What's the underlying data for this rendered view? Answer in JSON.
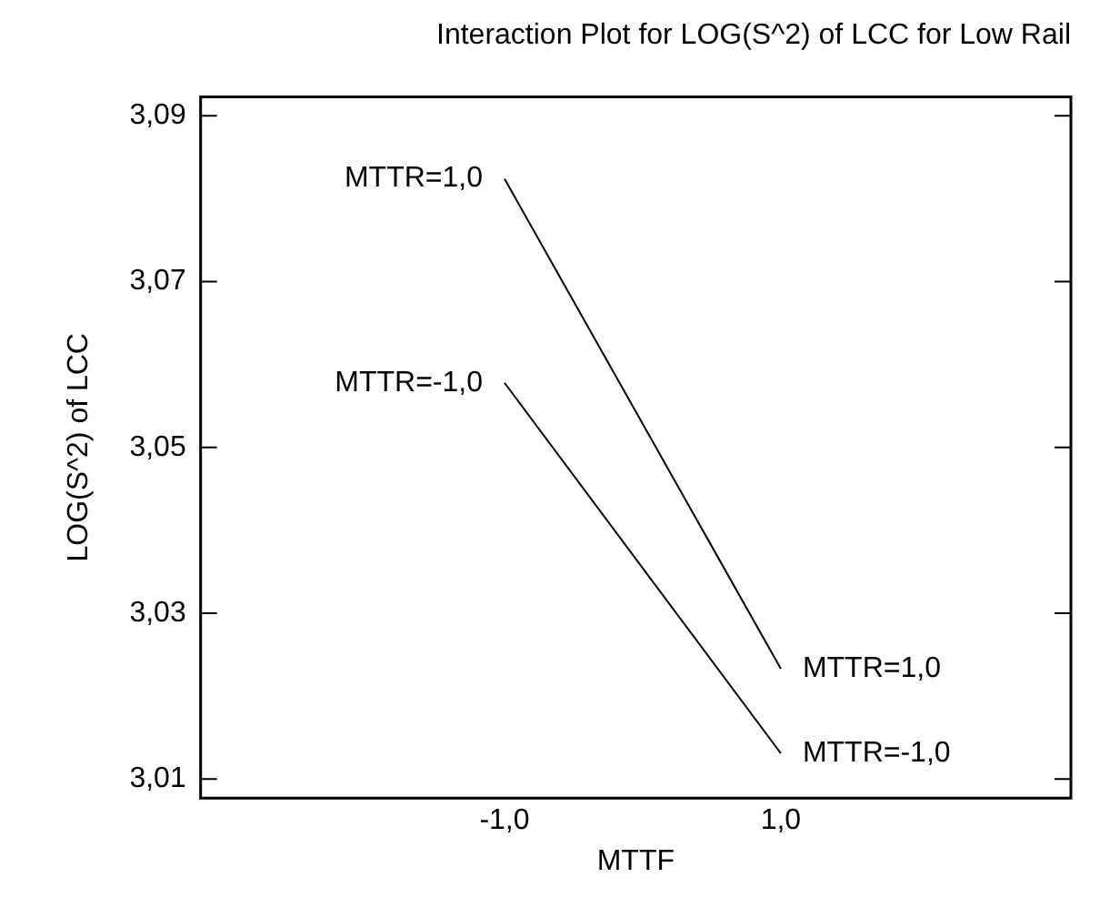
{
  "chart_data": {
    "type": "line",
    "title": "Interaction Plot for LOG(S^2) of LCC for Low Rail",
    "xlabel": "MTTF",
    "ylabel": "LOG(S^2) of LCC",
    "x": [
      -1,
      1
    ],
    "series": [
      {
        "name": "MTTR=1,0",
        "color": "#000000",
        "values": [
          3.0824,
          3.0233
        ]
      },
      {
        "name": "MTTR=-1,0",
        "color": "#000000",
        "values": [
          3.0578,
          3.0131
        ]
      }
    ],
    "xlim": [
      -3.2,
      3.1
    ],
    "xticks": [
      {
        "value": -1,
        "label": "-1,0"
      },
      {
        "value": 1,
        "label": "1,0"
      }
    ],
    "ylim": [
      3.0077,
      3.0923
    ],
    "yticks": [
      {
        "value": 3.01,
        "label": "3,01"
      },
      {
        "value": 3.03,
        "label": "3,03"
      },
      {
        "value": 3.05,
        "label": "3,05"
      },
      {
        "value": 3.07,
        "label": "3,07"
      },
      {
        "value": 3.09,
        "label": "3,09"
      }
    ],
    "grid": false,
    "legend": false,
    "marker": "none",
    "line_style": "solid"
  }
}
